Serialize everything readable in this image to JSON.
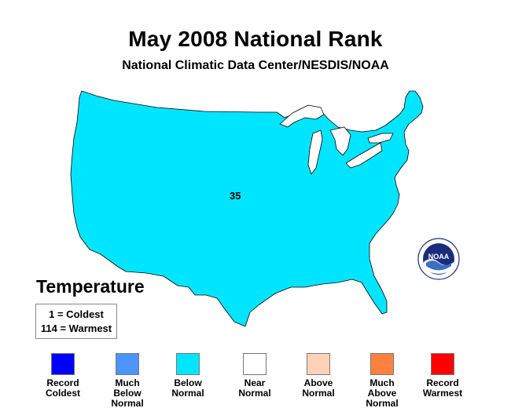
{
  "title": "May 2008 National Rank",
  "subtitle": "National Climatic Data Center/NESDIS/NOAA",
  "map": {
    "region": "Contiguous United States",
    "rank_value": "35",
    "fill_color": "#00e5ff",
    "lakes_color": "#ffffff"
  },
  "section_title": "Temperature",
  "key": {
    "line1": "1 = Coldest",
    "line2": "114 = Warmest"
  },
  "legend": [
    {
      "label": "Record\nColdest",
      "color": "#0000ff"
    },
    {
      "label": "Much\nBelow\nNormal",
      "color": "#4d94ff"
    },
    {
      "label": "Below\nNormal",
      "color": "#00e5ff"
    },
    {
      "label": "Near\nNormal",
      "color": "#ffffff"
    },
    {
      "label": "Above\nNormal",
      "color": "#ffd2b8"
    },
    {
      "label": "Much\nAbove\nNormal",
      "color": "#ff8040"
    },
    {
      "label": "Record\nWarmest",
      "color": "#ff0000"
    }
  ],
  "logo": {
    "text": "NOAA",
    "icon": "noaa-logo-icon"
  }
}
